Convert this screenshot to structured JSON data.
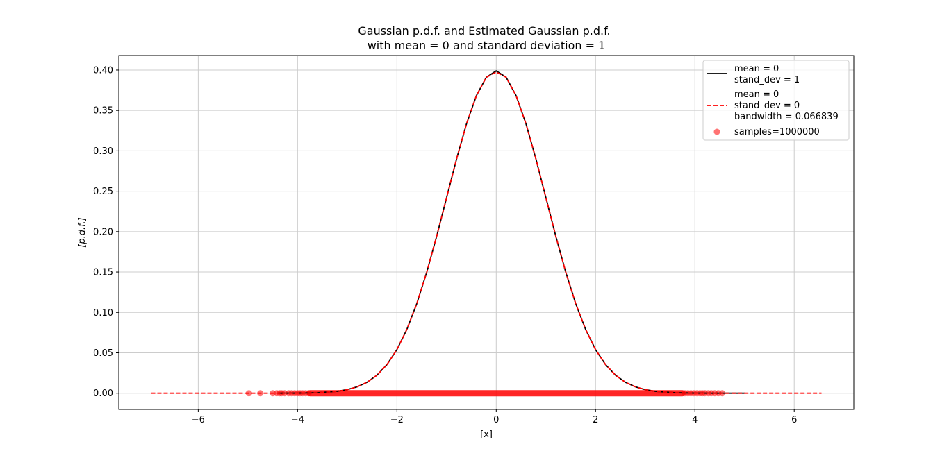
{
  "chart_data": {
    "type": "line",
    "title": [
      "Gaussian p.d.f. and Estimated Gaussian p.d.f.",
      "with mean = 0 and standard deviation = 1"
    ],
    "xlabel": "[x]",
    "ylabel": "[p.d.f.]",
    "xlim": [
      -7.6,
      7.2
    ],
    "ylim": [
      -0.02,
      0.418
    ],
    "xticks": [
      -6,
      -4,
      -2,
      0,
      2,
      4,
      6
    ],
    "xtick_labels": [
      "−6",
      "−4",
      "−2",
      "0",
      "2",
      "4",
      "6"
    ],
    "yticks": [
      0.0,
      0.05,
      0.1,
      0.15,
      0.2,
      0.25,
      0.3,
      0.35,
      0.4
    ],
    "ytick_labels": [
      "0.00",
      "0.05",
      "0.10",
      "0.15",
      "0.20",
      "0.25",
      "0.30",
      "0.35",
      "0.40"
    ],
    "grid": true,
    "legend_position": "top-right",
    "series": [
      {
        "name": "mean = 0\nstand_dev = 1",
        "kind": "line",
        "color": "#000000",
        "dash": "solid",
        "x": [
          -4.4,
          -4.0,
          -3.6,
          -3.2,
          -3.0,
          -2.8,
          -2.6,
          -2.4,
          -2.2,
          -2.0,
          -1.8,
          -1.6,
          -1.4,
          -1.2,
          -1.0,
          -0.8,
          -0.6,
          -0.4,
          -0.2,
          0.0,
          0.2,
          0.4,
          0.6,
          0.8,
          1.0,
          1.2,
          1.4,
          1.6,
          1.8,
          2.0,
          2.2,
          2.4,
          2.6,
          2.8,
          3.0,
          3.2,
          3.6,
          4.0,
          4.4,
          4.8,
          5.0
        ],
        "y": [
          3e-05,
          0.00013,
          0.00061,
          0.00238,
          0.00443,
          0.00792,
          0.01358,
          0.02239,
          0.03547,
          0.05399,
          0.07895,
          0.11092,
          0.14973,
          0.19419,
          0.24197,
          0.28969,
          0.33322,
          0.36827,
          0.39104,
          0.39894,
          0.39104,
          0.36827,
          0.33322,
          0.28969,
          0.24197,
          0.19419,
          0.14973,
          0.11092,
          0.07895,
          0.05399,
          0.03547,
          0.02239,
          0.01358,
          0.00792,
          0.00443,
          0.00238,
          0.00061,
          0.00013,
          3e-05,
          0.0,
          0.0
        ]
      },
      {
        "name": "mean = 0\nstand_dev = 0\nbandwidth = 0.066839",
        "kind": "line",
        "color": "#ff0000",
        "dash": "dashed",
        "x": [
          -6.95,
          -5.0,
          -4.4,
          -4.0,
          -3.6,
          -3.2,
          -3.0,
          -2.8,
          -2.6,
          -2.4,
          -2.2,
          -2.0,
          -1.8,
          -1.6,
          -1.4,
          -1.2,
          -1.0,
          -0.8,
          -0.6,
          -0.4,
          -0.2,
          0.0,
          0.2,
          0.4,
          0.6,
          0.8,
          1.0,
          1.2,
          1.4,
          1.6,
          1.8,
          2.0,
          2.2,
          2.4,
          2.6,
          2.8,
          3.0,
          3.2,
          3.6,
          4.0,
          4.4,
          5.0,
          6.55
        ],
        "y": [
          0.0,
          0.0,
          3e-05,
          0.00013,
          0.00061,
          0.00238,
          0.00443,
          0.00792,
          0.01358,
          0.02239,
          0.03547,
          0.05399,
          0.07895,
          0.11092,
          0.14973,
          0.19419,
          0.24197,
          0.28969,
          0.33322,
          0.36827,
          0.39104,
          0.3975,
          0.39104,
          0.36827,
          0.33322,
          0.28969,
          0.24197,
          0.19419,
          0.14973,
          0.11092,
          0.07895,
          0.05399,
          0.03547,
          0.02239,
          0.01358,
          0.00792,
          0.00443,
          0.00238,
          0.00061,
          0.00013,
          3e-05,
          0.0,
          0.0
        ]
      },
      {
        "name": "samples=1000000",
        "kind": "scatter",
        "color": "#ff0000",
        "opacity": 0.55,
        "x": [
          -4.98,
          -4.75,
          -4.5,
          -4.42,
          -4.36,
          -4.32,
          -4.26,
          -4.18,
          -4.12,
          -4.06,
          -4.0,
          -3.95,
          -3.9,
          -3.84,
          -3.78,
          3.8,
          3.86,
          3.92,
          3.98,
          4.04,
          4.1,
          4.15,
          4.2,
          4.27,
          4.33,
          4.4,
          4.47,
          4.55
        ],
        "y": [
          0,
          0,
          0,
          0,
          0,
          0,
          0,
          0,
          0,
          0,
          0,
          0,
          0,
          0,
          0,
          0,
          0,
          0,
          0,
          0,
          0,
          0,
          0,
          0,
          0,
          0,
          0,
          0
        ],
        "dense_range": [
          -3.75,
          3.75
        ]
      }
    ]
  }
}
